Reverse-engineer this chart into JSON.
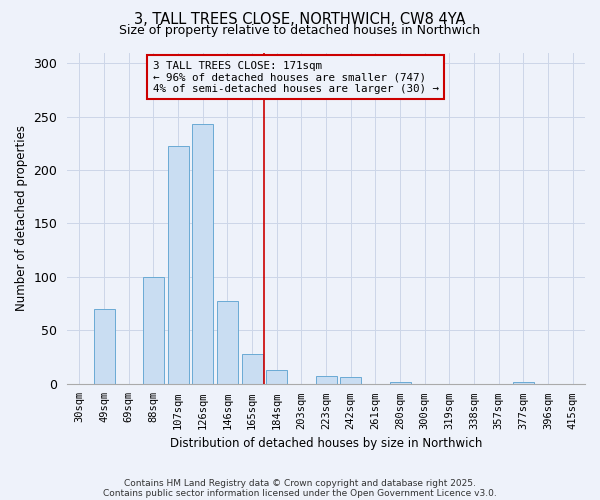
{
  "title": "3, TALL TREES CLOSE, NORTHWICH, CW8 4YA",
  "subtitle": "Size of property relative to detached houses in Northwich",
  "xlabel": "Distribution of detached houses by size in Northwich",
  "ylabel": "Number of detached properties",
  "bar_labels": [
    "30sqm",
    "49sqm",
    "69sqm",
    "88sqm",
    "107sqm",
    "126sqm",
    "146sqm",
    "165sqm",
    "184sqm",
    "203sqm",
    "223sqm",
    "242sqm",
    "261sqm",
    "280sqm",
    "300sqm",
    "319sqm",
    "338sqm",
    "357sqm",
    "377sqm",
    "396sqm",
    "415sqm"
  ],
  "bar_values": [
    0,
    70,
    0,
    100,
    222,
    243,
    77,
    28,
    13,
    0,
    7,
    6,
    0,
    1,
    0,
    0,
    0,
    0,
    1,
    0,
    0
  ],
  "bar_color": "#c9ddf2",
  "bar_edge_color": "#6aaad4",
  "vline_x": 7.5,
  "vline_color": "#cc0000",
  "annotation_title": "3 TALL TREES CLOSE: 171sqm",
  "annotation_line1": "← 96% of detached houses are smaller (747)",
  "annotation_line2": "4% of semi-detached houses are larger (30) →",
  "annotation_box_edgecolor": "#cc0000",
  "ylim": [
    0,
    310
  ],
  "yticks": [
    0,
    50,
    100,
    150,
    200,
    250,
    300
  ],
  "grid_color": "#ccd6e8",
  "bg_color": "#eef2fa",
  "footnote1": "Contains HM Land Registry data © Crown copyright and database right 2025.",
  "footnote2": "Contains public sector information licensed under the Open Government Licence v3.0."
}
